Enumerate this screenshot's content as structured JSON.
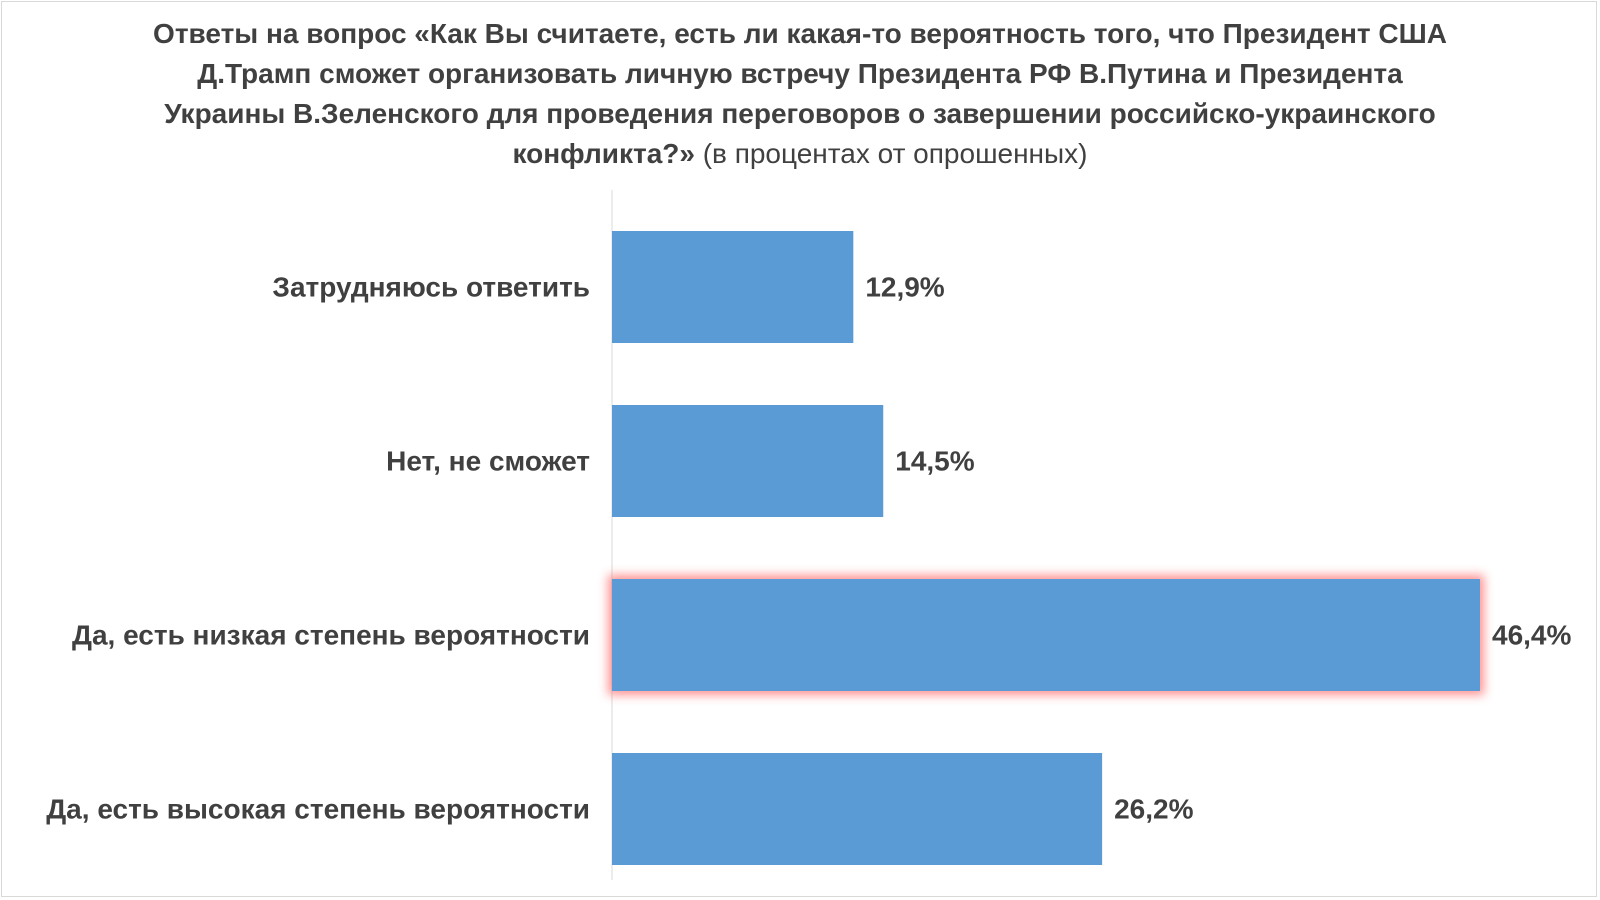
{
  "title": {
    "main": "Ответы на вопрос «Как Вы считаете, есть ли какая-то вероятность того, что Президент США Д.Трамп сможет организовать личную встречу Президента РФ В.Путина и Президента Украины В.Зеленского для проведения переговоров о завершении российско-украинского конфликта?»",
    "note": "(в процентах от опрошенных)"
  },
  "colors": {
    "bar": "#5b9bd5",
    "highlight_glow": "#ff3b3b",
    "text": "#404040",
    "axis": "#d9d9d9"
  },
  "chart_data": {
    "type": "bar",
    "orientation": "horizontal",
    "categories": [
      "Затрудняюсь ответить",
      "Нет, не сможет",
      "Да, есть низкая степень вероятности",
      "Да, есть высокая степень вероятности"
    ],
    "values": [
      12.9,
      14.5,
      46.4,
      26.2
    ],
    "value_labels": [
      "12,9%",
      "14,5%",
      "46,4%",
      "26,2%"
    ],
    "highlighted_index": 2,
    "xlim": [
      0,
      46.4
    ],
    "unit": "%",
    "grid": false,
    "legend": "none"
  }
}
